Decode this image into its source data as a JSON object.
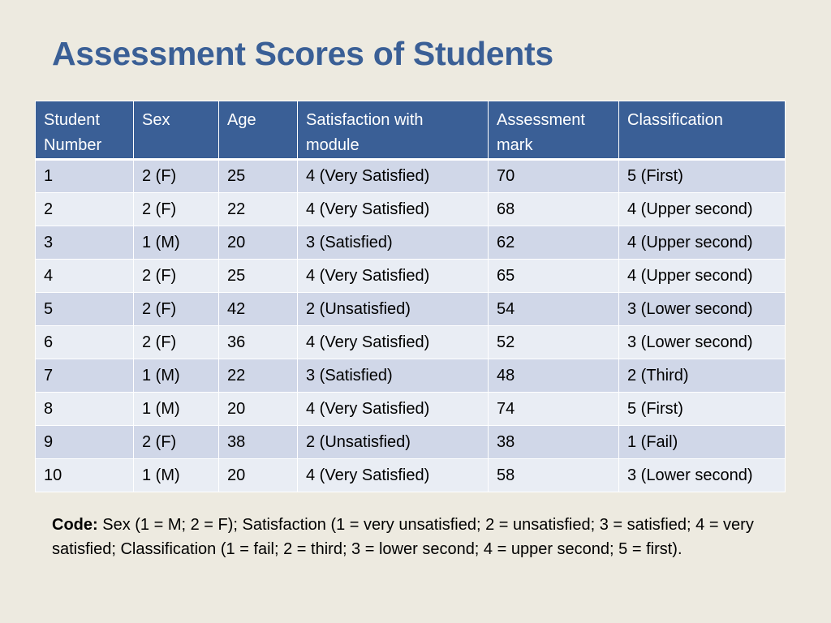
{
  "title": "Assessment Scores of Students",
  "table": {
    "headers": [
      "Student\nNumber",
      "Sex",
      "Age",
      "Satisfaction with\nmodule",
      "Assessment\nmark",
      "Classification"
    ],
    "rows": [
      [
        "1",
        "2 (F)",
        "25",
        "4 (Very Satisfied)",
        "70",
        "5 (First)"
      ],
      [
        "2",
        "2 (F)",
        "22",
        "4 (Very Satisfied)",
        "68",
        "4 (Upper second)"
      ],
      [
        "3",
        "1 (M)",
        "20",
        "3 (Satisfied)",
        "62",
        "4 (Upper second)"
      ],
      [
        "4",
        "2 (F)",
        "25",
        "4 (Very Satisfied)",
        "65",
        "4 (Upper second)"
      ],
      [
        "5",
        "2 (F)",
        "42",
        "2 (Unsatisfied)",
        "54",
        "3 (Lower second)"
      ],
      [
        "6",
        "2 (F)",
        "36",
        "4 (Very Satisfied)",
        "52",
        "3 (Lower second)"
      ],
      [
        "7",
        "1 (M)",
        "22",
        "3 (Satisfied)",
        "48",
        "2 (Third)"
      ],
      [
        "8",
        "1 (M)",
        "20",
        "4 (Very Satisfied)",
        "74",
        "5 (First)"
      ],
      [
        "9",
        "2 (F)",
        "38",
        "2 (Unsatisfied)",
        "38",
        "1 (Fail)"
      ],
      [
        "10",
        "1 (M)",
        "20",
        "4 (Very Satisfied)",
        "58",
        "3 (Lower second)"
      ]
    ]
  },
  "code_note": {
    "label": "Code:",
    "text": " Sex (1 = M; 2 = F); Satisfaction (1 = very unsatisfied; 2 = unsatisfied; 3 = satisfied; 4 = very satisfied; Classification (1 = fail; 2 = third; 3 = lower second; 4 = upper second; 5 = first)."
  },
  "colors": {
    "title": "#3a5f96",
    "header_bg": "#3a5f96",
    "row_odd": "#d0d7e8",
    "row_even": "#e9edf4",
    "background": "#edeae0"
  }
}
